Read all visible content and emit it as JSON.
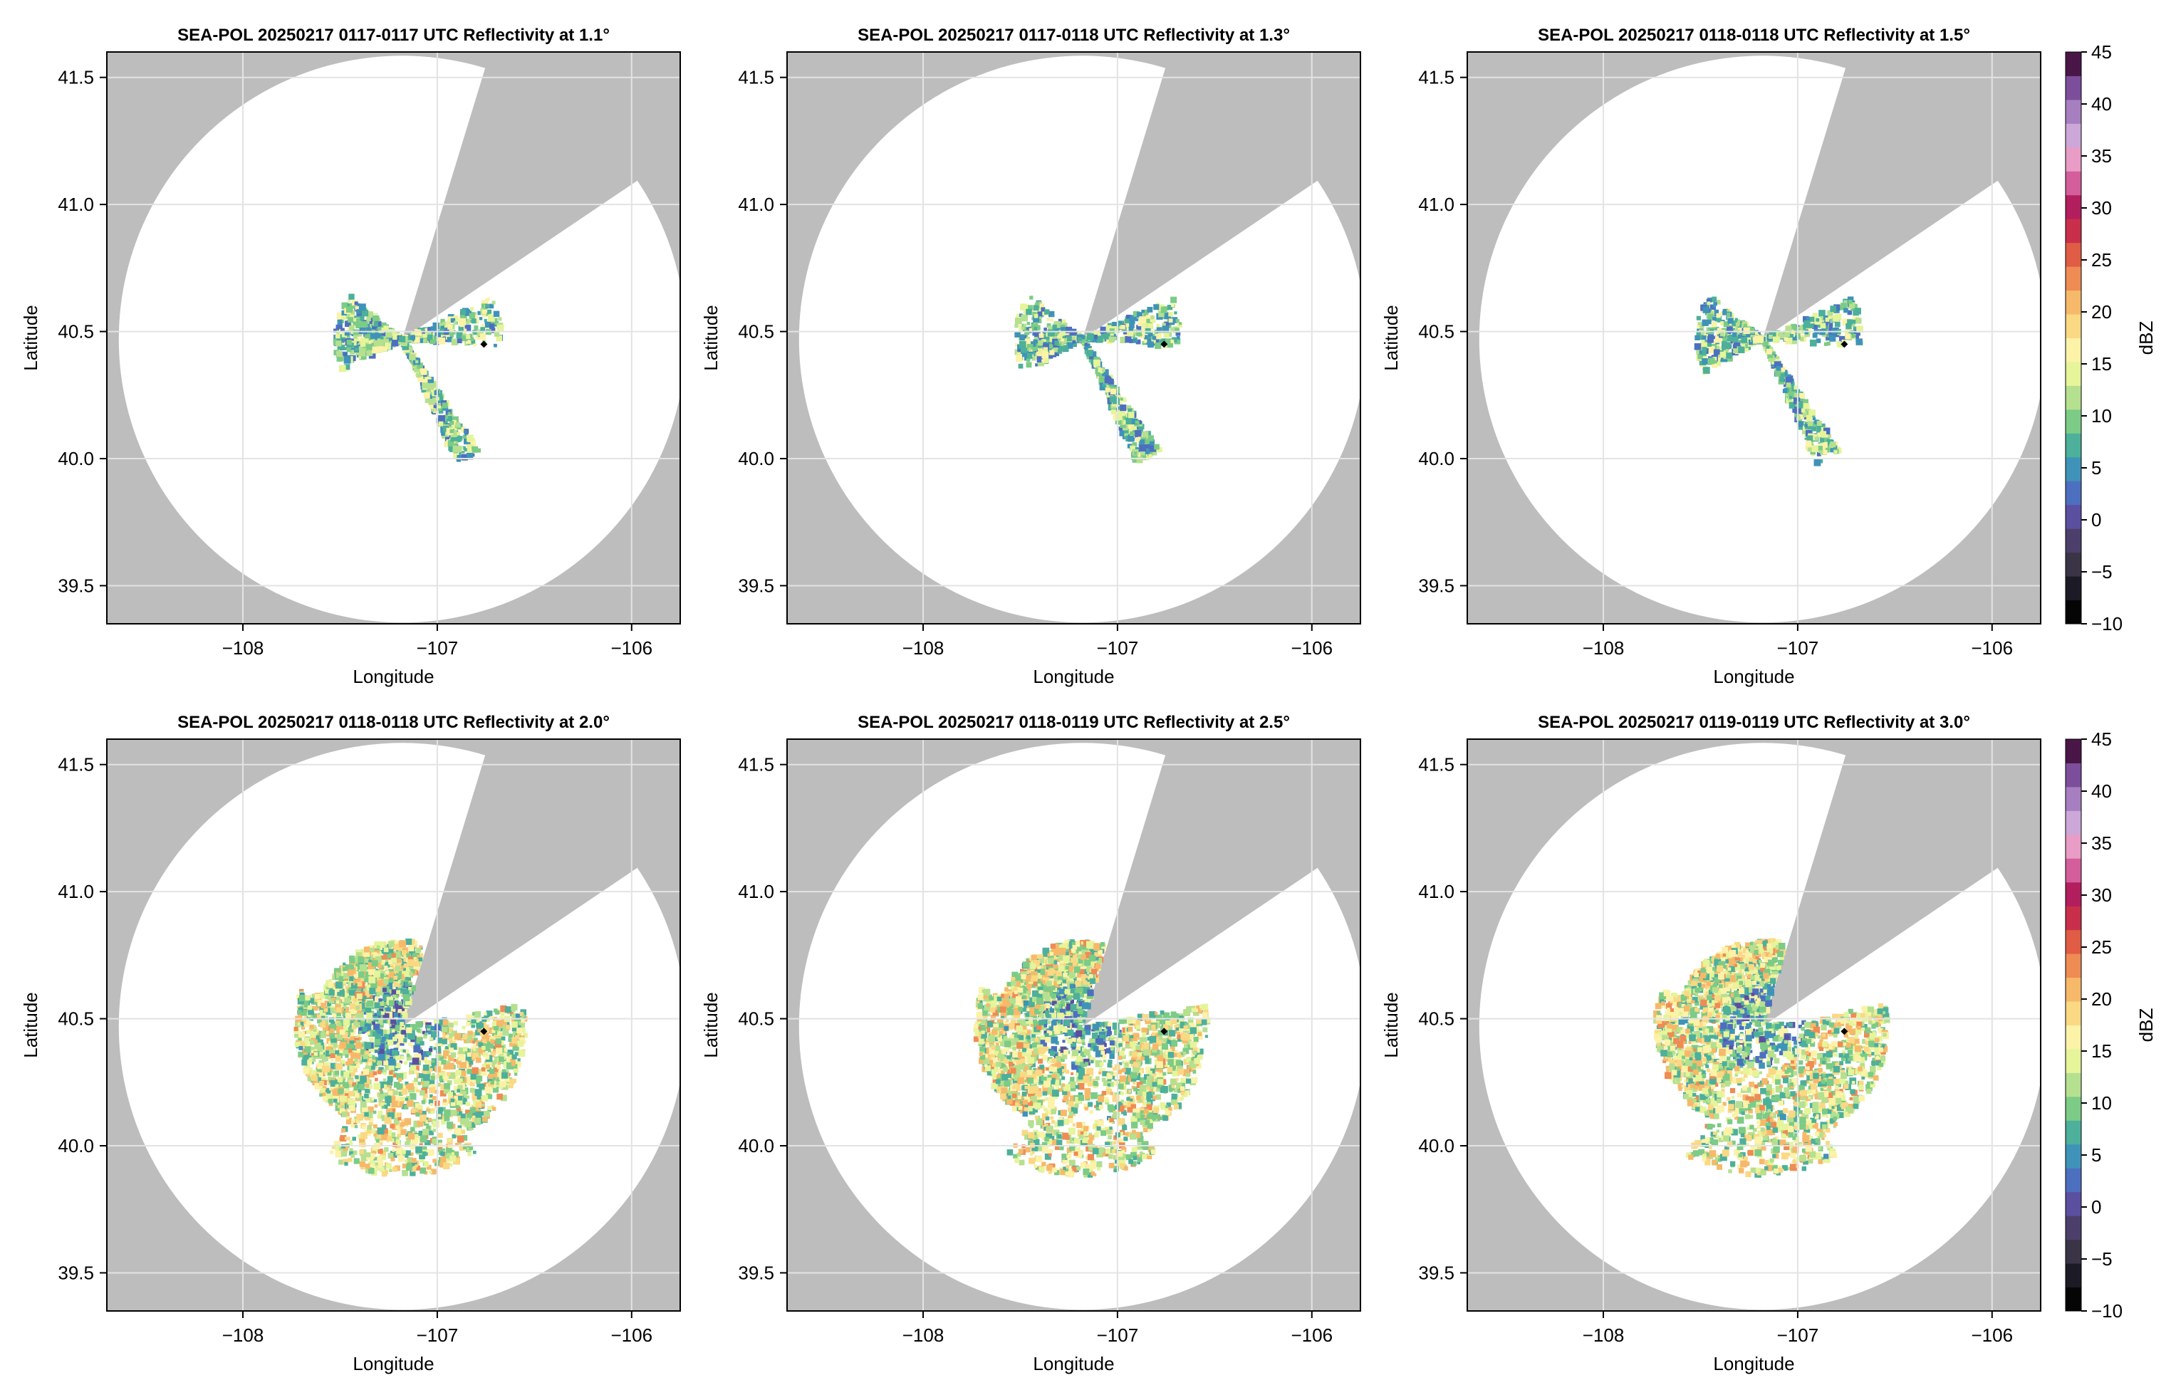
{
  "chart_data": [
    {
      "type": "heatmap",
      "title": "SEA-POL 20250217 0117-0117 UTC Reflectivity at 1.1°",
      "xlabel": "Longitude",
      "ylabel": "Latitude",
      "xlim": [
        -108.7,
        -105.75
      ],
      "ylim": [
        39.35,
        41.6
      ],
      "xticks": [
        -108,
        -107,
        -106
      ],
      "xtick_labels": [
        "−108",
        "−107",
        "−106"
      ],
      "yticks": [
        39.5,
        40.0,
        40.5,
        41.0,
        41.5
      ],
      "ytick_labels": [
        "39.5",
        "40.0",
        "40.5",
        "41.0",
        "41.5"
      ],
      "grid": true,
      "radar_center": [
        -107.18,
        40.47
      ],
      "marker": [
        -106.76,
        40.45
      ],
      "echo_extent": "short"
    },
    {
      "type": "heatmap",
      "title": "SEA-POL 20250217 0117-0118 UTC Reflectivity at 1.3°",
      "xlabel": "Longitude",
      "ylabel": "Latitude",
      "xlim": [
        -108.7,
        -105.75
      ],
      "ylim": [
        39.35,
        41.6
      ],
      "xticks": [
        -108,
        -107,
        -106
      ],
      "xtick_labels": [
        "−108",
        "−107",
        "−106"
      ],
      "yticks": [
        39.5,
        40.0,
        40.5,
        41.0,
        41.5
      ],
      "ytick_labels": [
        "39.5",
        "40.0",
        "40.5",
        "41.0",
        "41.5"
      ],
      "grid": true,
      "radar_center": [
        -107.18,
        40.47
      ],
      "marker": [
        -106.76,
        40.45
      ],
      "echo_extent": "short"
    },
    {
      "type": "heatmap",
      "title": "SEA-POL 20250217 0118-0118 UTC Reflectivity at 1.5°",
      "xlabel": "Longitude",
      "ylabel": "Latitude",
      "xlim": [
        -108.7,
        -105.75
      ],
      "ylim": [
        39.35,
        41.6
      ],
      "xticks": [
        -108,
        -107,
        -106
      ],
      "xtick_labels": [
        "−108",
        "−107",
        "−106"
      ],
      "yticks": [
        39.5,
        40.0,
        40.5,
        41.0,
        41.5
      ],
      "ytick_labels": [
        "39.5",
        "40.0",
        "40.5",
        "41.0",
        "41.5"
      ],
      "grid": true,
      "radar_center": [
        -107.18,
        40.47
      ],
      "marker": [
        -106.76,
        40.45
      ],
      "echo_extent": "short"
    },
    {
      "type": "heatmap",
      "title": "SEA-POL 20250217 0118-0118 UTC Reflectivity at 2.0°",
      "xlabel": "Longitude",
      "ylabel": "Latitude",
      "xlim": [
        -108.7,
        -105.75
      ],
      "ylim": [
        39.35,
        41.6
      ],
      "xticks": [
        -108,
        -107,
        -106
      ],
      "xtick_labels": [
        "−108",
        "−107",
        "−106"
      ],
      "yticks": [
        39.5,
        40.0,
        40.5,
        41.0,
        41.5
      ],
      "ytick_labels": [
        "39.5",
        "40.0",
        "40.5",
        "41.0",
        "41.5"
      ],
      "grid": true,
      "radar_center": [
        -107.18,
        40.47
      ],
      "marker": [
        -106.76,
        40.45
      ],
      "echo_extent": "wide"
    },
    {
      "type": "heatmap",
      "title": "SEA-POL 20250217 0118-0119 UTC Reflectivity at 2.5°",
      "xlabel": "Longitude",
      "ylabel": "Latitude",
      "xlim": [
        -108.7,
        -105.75
      ],
      "ylim": [
        39.35,
        41.6
      ],
      "xticks": [
        -108,
        -107,
        -106
      ],
      "xtick_labels": [
        "−108",
        "−107",
        "−106"
      ],
      "yticks": [
        39.5,
        40.0,
        40.5,
        41.0,
        41.5
      ],
      "ytick_labels": [
        "39.5",
        "40.0",
        "40.5",
        "41.0",
        "41.5"
      ],
      "grid": true,
      "radar_center": [
        -107.18,
        40.47
      ],
      "marker": [
        -106.76,
        40.45
      ],
      "echo_extent": "wide"
    },
    {
      "type": "heatmap",
      "title": "SEA-POL 20250217 0119-0119 UTC Reflectivity at 3.0°",
      "xlabel": "Longitude",
      "ylabel": "Latitude",
      "xlim": [
        -108.7,
        -105.75
      ],
      "ylim": [
        39.35,
        41.6
      ],
      "xticks": [
        -108,
        -107,
        -106
      ],
      "xtick_labels": [
        "−108",
        "−107",
        "−106"
      ],
      "yticks": [
        39.5,
        40.0,
        40.5,
        41.0,
        41.5
      ],
      "ytick_labels": [
        "39.5",
        "40.0",
        "40.5",
        "41.0",
        "41.5"
      ],
      "grid": true,
      "radar_center": [
        -107.18,
        40.47
      ],
      "marker": [
        -106.76,
        40.45
      ],
      "echo_extent": "wide"
    }
  ],
  "colorbar": {
    "label": "dBZ",
    "range": [
      -10,
      45
    ],
    "ticks": [
      -10,
      -5,
      0,
      5,
      10,
      15,
      20,
      25,
      30,
      35,
      40,
      45
    ],
    "tick_labels": [
      "−10",
      "−5",
      "0",
      "5",
      "10",
      "15",
      "20",
      "25",
      "30",
      "35",
      "40",
      "45"
    ],
    "colors": [
      "#050505",
      "#1c1a24",
      "#3a3446",
      "#4c3f6b",
      "#5b4fa0",
      "#4d6fc0",
      "#3f93b8",
      "#4cb09a",
      "#7ccb86",
      "#b5e08f",
      "#e6f49a",
      "#fcf2a8",
      "#fbd883",
      "#f6b96a",
      "#ef8b54",
      "#e05c45",
      "#c92f4a",
      "#b21e5e",
      "#d45d9c",
      "#e89cc6",
      "#cda7d8",
      "#a77fc1",
      "#7d4e9c",
      "#4a1648"
    ]
  },
  "colors": {
    "no_data": "#bdbdbd",
    "coverage": "#ffffff",
    "grid": "#e3e3e3",
    "marker": "#000000"
  }
}
